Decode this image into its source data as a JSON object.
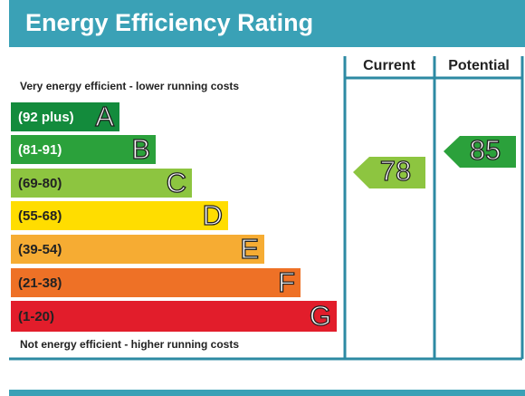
{
  "header": {
    "title": "Energy Efficiency Rating"
  },
  "columns": [
    "Current",
    "Potential"
  ],
  "top_note": "Very energy efficient - lower running costs",
  "bottom_note": "Not energy efficient - higher running costs",
  "bands": [
    {
      "range": "(92 plus)",
      "letter": "A",
      "color": "#138b3c"
    },
    {
      "range": "(81-91)",
      "letter": "B",
      "color": "#2ba13b"
    },
    {
      "range": "(69-80)",
      "letter": "C",
      "color": "#8dc540"
    },
    {
      "range": "(55-68)",
      "letter": "D",
      "color": "#ffdd00"
    },
    {
      "range": "(39-54)",
      "letter": "E",
      "color": "#f6ac33"
    },
    {
      "range": "(21-38)",
      "letter": "F",
      "color": "#ee7126"
    },
    {
      "range": "(1-20)",
      "letter": "G",
      "color": "#e21d2b"
    }
  ],
  "current": {
    "value": 78,
    "color": "#8dc540"
  },
  "potential": {
    "value": 85,
    "color": "#2ba13b"
  }
}
